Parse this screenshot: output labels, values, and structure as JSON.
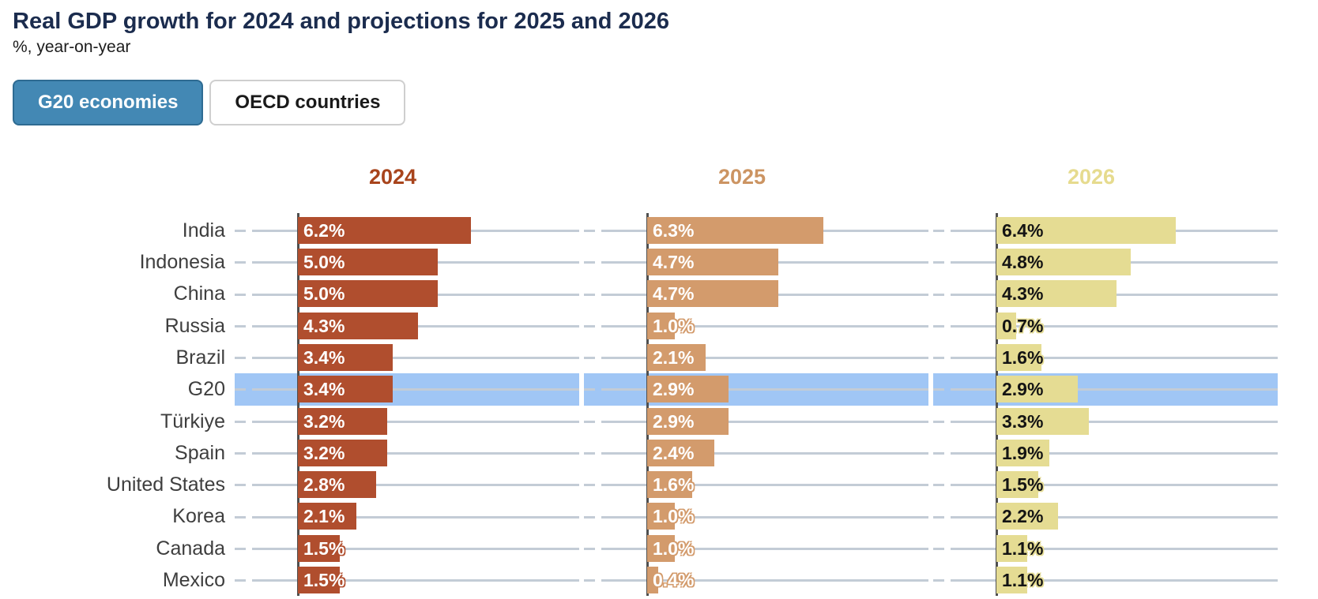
{
  "header": {
    "title": "Real GDP growth for 2024 and projections for 2025 and 2026",
    "subtitle": "%, year-on-year"
  },
  "toggle": {
    "options": [
      {
        "label": "G20 economies",
        "selected": true
      },
      {
        "label": "OECD countries",
        "selected": false
      }
    ],
    "selected_bg": "#4388b4"
  },
  "chart_data": {
    "type": "bar",
    "orientation": "horizontal",
    "title": "Real GDP growth for 2024 and projections for 2025 and 2026",
    "subtitle": "%, year-on-year",
    "value_suffix": "%",
    "xlim": [
      0,
      10.6
    ],
    "grid": "row-lines",
    "categories": [
      "India",
      "Indonesia",
      "China",
      "Russia",
      "Brazil",
      "G20",
      "Türkiye",
      "Spain",
      "United States",
      "Korea",
      "Canada",
      "Mexico"
    ],
    "highlight_category": "G20",
    "highlight_color": "#a0c6f5",
    "row_line_color": "#c3ccd6",
    "axis_line_color": "#4f4f4f",
    "category_label_color": "#3e3e3e",
    "series": [
      {
        "name": "2024",
        "color": "#b04e2e",
        "header_color": "#a8441c",
        "label_color": "#ffffff",
        "values": [
          6.2,
          5.0,
          5.0,
          4.3,
          3.4,
          3.4,
          3.2,
          3.2,
          2.8,
          2.1,
          1.5,
          1.5
        ]
      },
      {
        "name": "2025",
        "color": "#d39b6c",
        "header_color": "#cc9462",
        "label_color": "#ffffff",
        "values": [
          6.3,
          4.7,
          4.7,
          1.0,
          2.1,
          2.9,
          2.9,
          2.4,
          1.6,
          1.0,
          1.0,
          0.4
        ]
      },
      {
        "name": "2026",
        "color": "#e5dc93",
        "header_color": "#e6db8e",
        "label_color": "#141414",
        "values": [
          6.4,
          4.8,
          4.3,
          0.7,
          1.6,
          2.9,
          3.3,
          1.9,
          1.5,
          2.2,
          1.1,
          1.1
        ]
      }
    ]
  }
}
